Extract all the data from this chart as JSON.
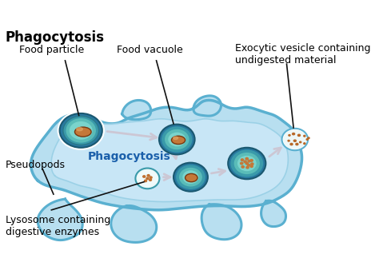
{
  "title": "Phagocytosis",
  "title_fontsize": 12,
  "background_color": "#ffffff",
  "labels": {
    "food_particle": "Food particle",
    "food_vacuole": "Food vacuole",
    "exocytic": "Exocytic vesicle containing\nundigested material",
    "pseudopods": "Pseudopods",
    "phagocytosis": "Phagocytosis",
    "lysosome": "Lysosome containing\ndigestive enzymes"
  },
  "cell_outer_color": "#b8dff0",
  "cell_inner_color": "#cce8f8",
  "cell_mid_color": "#a8d4eb",
  "cell_edge_color": "#5ab0d0",
  "arrow_color": "#cc1111",
  "label_line_color": "#111111",
  "label_fontsize": 9,
  "phago_fontsize": 10,
  "vesicle_outer": "#3a9aaa",
  "vesicle_mid": "#4ab8b8",
  "vesicle_inner": "#6acfc8",
  "food_color": "#c47838",
  "food_edge": "#7a3810",
  "lyso_bg": "#e8f8f8",
  "lyso_edge": "#3a9aaa",
  "lyso_dot": "#c07030"
}
